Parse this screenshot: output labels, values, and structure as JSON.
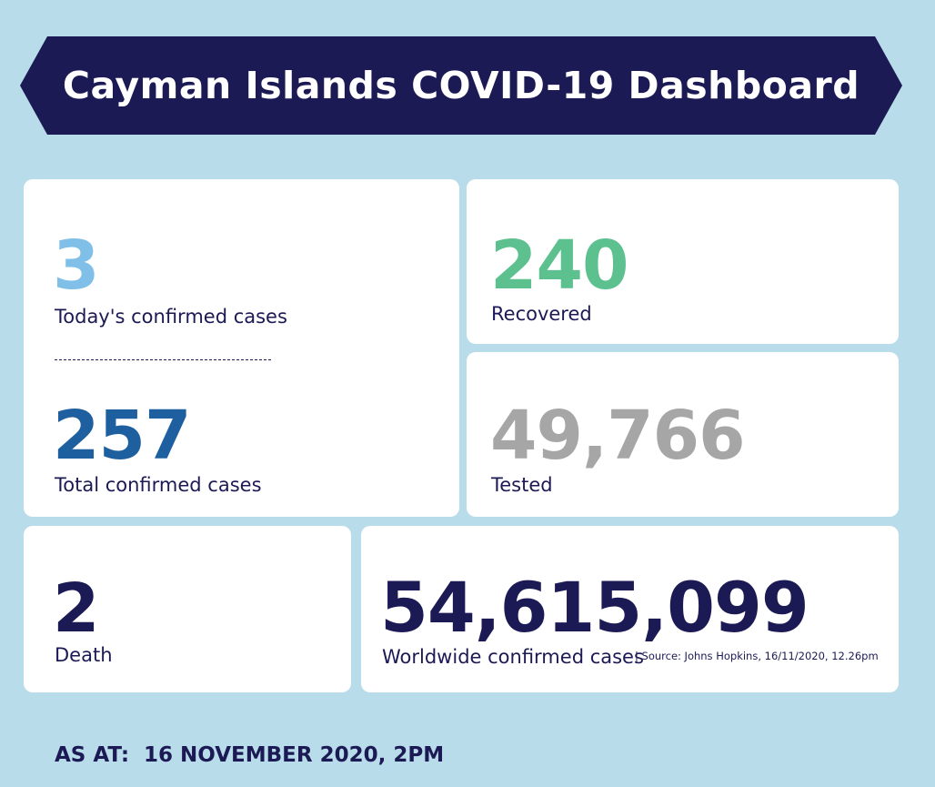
{
  "header": {
    "title": "Cayman Islands COVID-19 Dashboard"
  },
  "cards": [
    {
      "value": "3",
      "label": "Today's confirmed cases"
    },
    {
      "value": "257",
      "label": "Total confirmed cases"
    },
    {
      "value": "240",
      "label": "Recovered"
    },
    {
      "value": "49,766",
      "label": "Tested"
    },
    {
      "value": "2",
      "label": "Death"
    },
    {
      "value": "54,615,099",
      "label": "Worldwide confirmed cases",
      "source": "| Source: Johns Hopkins, 16/11/2020, 12.26pm"
    }
  ],
  "footer": {
    "as_at": "AS AT:  16 NOVEMBER 2020, 2PM"
  }
}
